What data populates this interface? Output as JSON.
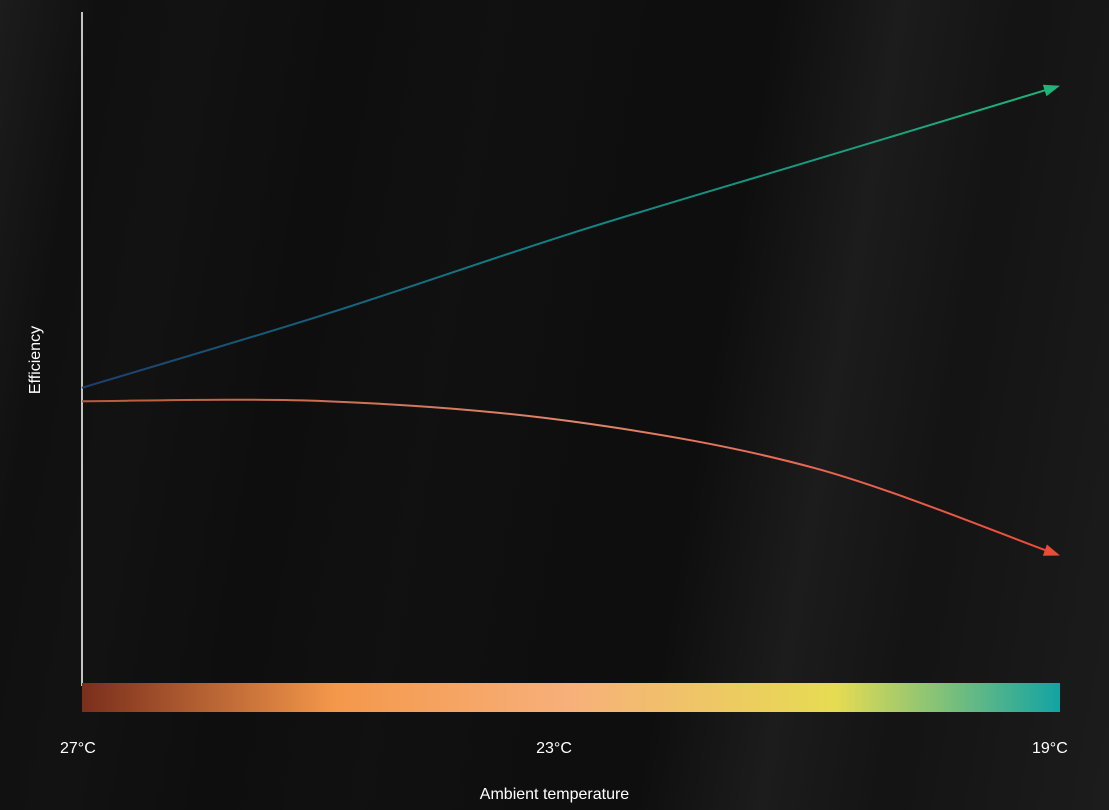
{
  "chart_data": {
    "type": "line",
    "xlabel": "Ambient temperature",
    "ylabel": "Efficiency",
    "x_ticks": [
      "27°C",
      "23°C",
      "19°C"
    ],
    "x": [
      27,
      25,
      23,
      21,
      19
    ],
    "xlim": [
      27,
      19
    ],
    "ylim": [
      0,
      1
    ],
    "grid": false,
    "series": [
      {
        "values": [
          0.44,
          0.55,
          0.67,
          0.78,
          0.89
        ],
        "color": "#1aa87a",
        "arrow": true
      },
      {
        "values": [
          0.42,
          0.42,
          0.39,
          0.32,
          0.19
        ],
        "color": "#e8503a",
        "arrow": true
      }
    ],
    "colorbar": {
      "colors": [
        "#7a2e1c",
        "#f4984b",
        "#f7b07a",
        "#e6dc52",
        "#12a3a3"
      ]
    }
  }
}
